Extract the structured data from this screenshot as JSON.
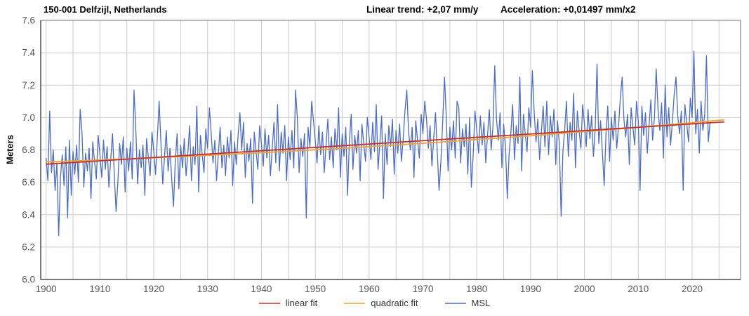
{
  "header": {
    "title": "150-001 Delfzijl, Netherlands",
    "linear_trend_label": "Linear trend: +2,07 mm/y",
    "acceleration_label": "Acceleration: +0,01497 mm/x2"
  },
  "chart_data": {
    "type": "line",
    "title": "150-001 Delfzijl, Netherlands",
    "xlabel": "",
    "ylabel": "Meters",
    "xlim": [
      1899,
      2029
    ],
    "ylim": [
      6.0,
      7.6
    ],
    "x_grid_start": 1900,
    "x_grid_end": 2025,
    "x_grid_step": 5,
    "y_grid_step": 0.2,
    "grid": true,
    "legend_position": "bottom",
    "x_ticks": [
      1900,
      1910,
      1920,
      1930,
      1940,
      1950,
      1960,
      1970,
      1980,
      1990,
      2000,
      2010,
      2020
    ],
    "y_ticks": [
      "6.0",
      "6.2",
      "6.4",
      "6.6",
      "6.8",
      "7.0",
      "7.2",
      "7.4",
      "7.6"
    ],
    "annotations": {
      "linear_trend_mm_per_year": 2.07,
      "acceleration_mm_per_year2": 0.01497
    },
    "colors": {
      "msl": "#4a6ace",
      "linear": "#c4312a",
      "quadratic": "#e9a43b",
      "grid": "#cccccc",
      "border": "#888888",
      "axis": "#555555",
      "tick_text": "#555555"
    },
    "series": [
      {
        "name": "MSL",
        "color": "#4a6ace",
        "x_start": 1900,
        "x_step": 0.33333,
        "values": [
          6.75,
          6.61,
          7.04,
          6.66,
          6.8,
          6.55,
          6.72,
          6.27,
          6.63,
          6.77,
          6.58,
          6.82,
          6.38,
          6.86,
          6.52,
          6.79,
          6.65,
          6.83,
          6.6,
          7.05,
          6.91,
          6.57,
          6.78,
          6.67,
          6.81,
          6.5,
          6.85,
          6.73,
          6.62,
          6.89,
          6.77,
          6.63,
          6.86,
          6.68,
          6.82,
          6.57,
          6.74,
          6.9,
          6.65,
          6.42,
          6.6,
          6.84,
          6.71,
          6.88,
          6.54,
          6.81,
          6.67,
          6.85,
          6.62,
          7.17,
          6.93,
          6.59,
          6.8,
          6.69,
          6.83,
          6.52,
          6.87,
          6.75,
          6.64,
          6.91,
          6.79,
          6.65,
          6.88,
          7.1,
          6.84,
          6.59,
          6.76,
          6.92,
          6.67,
          6.81,
          6.62,
          6.45,
          6.73,
          6.9,
          6.56,
          6.83,
          6.69,
          6.87,
          6.64,
          6.78,
          6.95,
          6.61,
          6.82,
          6.71,
          7.07,
          6.54,
          6.89,
          6.77,
          6.66,
          6.93,
          6.81,
          7.06,
          6.9,
          6.72,
          6.86,
          6.61,
          6.78,
          6.94,
          6.69,
          6.83,
          6.64,
          6.88,
          6.75,
          6.92,
          6.58,
          6.85,
          6.71,
          6.89,
          7.03,
          6.8,
          6.97,
          6.63,
          6.84,
          6.73,
          6.87,
          6.47,
          6.91,
          6.79,
          6.68,
          6.95,
          6.84,
          6.7,
          6.93,
          6.75,
          6.89,
          6.64,
          6.81,
          6.97,
          6.72,
          7.08,
          6.67,
          6.91,
          6.78,
          6.95,
          6.61,
          6.88,
          6.74,
          6.92,
          6.69,
          7.17,
          7.0,
          6.66,
          6.87,
          6.76,
          6.9,
          6.38,
          6.94,
          6.82,
          7.1,
          6.98,
          6.86,
          6.72,
          6.95,
          6.77,
          6.91,
          6.66,
          6.83,
          6.99,
          6.74,
          6.88,
          6.69,
          6.93,
          6.8,
          7.06,
          6.63,
          6.9,
          6.76,
          6.94,
          6.52,
          6.85,
          7.02,
          6.68,
          6.89,
          6.78,
          6.92,
          6.61,
          6.96,
          6.84,
          6.73,
          7.0,
          6.88,
          6.74,
          6.97,
          6.79,
          7.08,
          6.68,
          6.85,
          7.01,
          6.5,
          6.9,
          6.71,
          6.95,
          6.82,
          6.99,
          6.65,
          6.92,
          6.78,
          6.96,
          6.73,
          6.87,
          7.04,
          7.17,
          6.91,
          6.8,
          6.94,
          6.63,
          6.98,
          6.86,
          6.75,
          7.02,
          6.9,
          7.1,
          6.99,
          6.81,
          6.95,
          6.7,
          6.87,
          7.03,
          6.78,
          6.55,
          6.73,
          6.97,
          7.25,
          7.01,
          6.67,
          6.94,
          6.8,
          6.98,
          6.75,
          7.1,
          7.06,
          6.72,
          6.93,
          6.82,
          6.96,
          6.65,
          7.0,
          6.57,
          6.77,
          7.04,
          6.92,
          6.78,
          7.01,
          6.83,
          6.97,
          6.72,
          6.89,
          7.05,
          6.8,
          6.94,
          7.32,
          6.99,
          6.86,
          7.03,
          6.69,
          6.96,
          6.82,
          6.5,
          6.77,
          6.91,
          7.08,
          6.74,
          6.95,
          6.84,
          7.25,
          6.67,
          7.02,
          6.9,
          6.79,
          7.06,
          6.94,
          7.29,
          7.03,
          6.85,
          6.99,
          6.74,
          6.91,
          7.07,
          6.82,
          7.1,
          6.77,
          7.01,
          6.88,
          7.05,
          6.71,
          6.98,
          6.84,
          6.39,
          6.79,
          6.93,
          7.1,
          6.76,
          6.97,
          6.86,
          7.15,
          6.69,
          7.04,
          6.92,
          6.81,
          7.08,
          6.96,
          6.82,
          7.05,
          6.87,
          7.01,
          6.76,
          6.93,
          7.33,
          6.84,
          6.98,
          6.79,
          6.58,
          6.9,
          7.07,
          6.73,
          7.0,
          6.86,
          7.04,
          6.81,
          6.95,
          7.12,
          7.25,
          6.99,
          6.88,
          7.02,
          6.71,
          7.06,
          6.94,
          6.83,
          7.1,
          6.98,
          6.55,
          7.07,
          6.89,
          7.03,
          6.78,
          6.95,
          7.11,
          6.86,
          7.0,
          7.3,
          7.05,
          6.92,
          7.09,
          6.75,
          7.2,
          6.88,
          7.06,
          6.83,
          6.97,
          7.14,
          7.25,
          7.01,
          6.9,
          7.04,
          6.55,
          7.08,
          6.96,
          6.85,
          7.12,
          7.0,
          7.41,
          6.9,
          7.05,
          6.78,
          7.1,
          6.92,
          7.02,
          7.38,
          6.85,
          6.97
        ]
      },
      {
        "name": "linear fit",
        "color": "#c4312a",
        "points": [
          [
            1900,
            6.712
          ],
          [
            2026,
            6.973
          ]
        ]
      },
      {
        "name": "quadratic fit",
        "color": "#e9a43b",
        "t0": 1900,
        "x_end": 2026,
        "coeffs": {
          "c0": 6.726,
          "c1": 0.00112,
          "c2": 7.5e-06
        }
      }
    ],
    "legend": [
      {
        "label": "linear fit",
        "color": "#c4312a"
      },
      {
        "label": "quadratic fit",
        "color": "#e9a43b"
      },
      {
        "label": "MSL",
        "color": "#4a6ace"
      }
    ]
  }
}
